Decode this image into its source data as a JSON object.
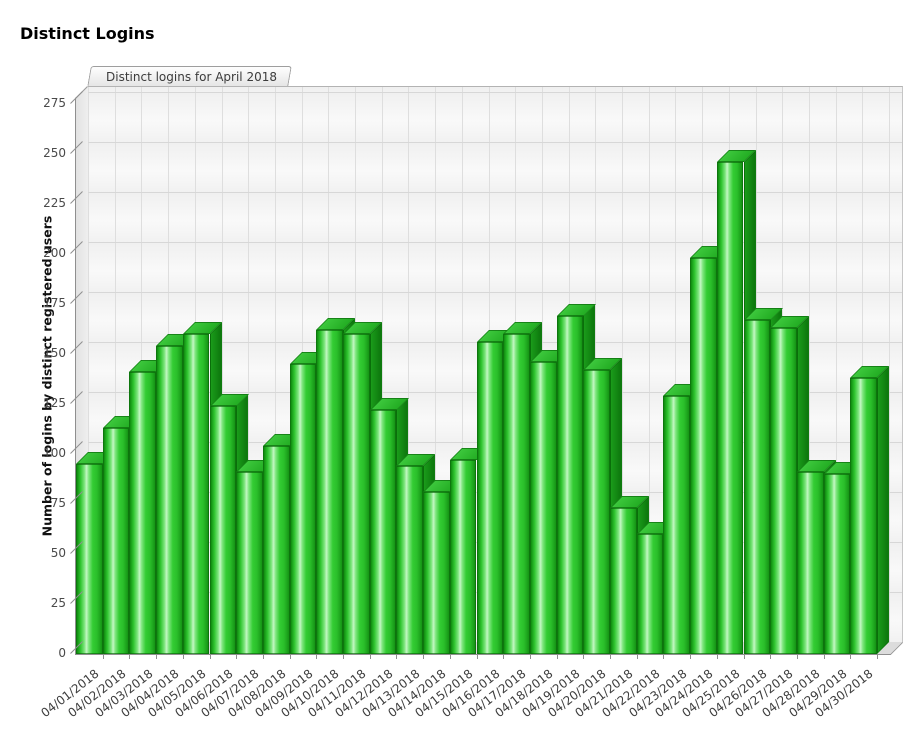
{
  "page_title": "Distinct Logins",
  "tab_label": "Distinct logins for April 2018",
  "colors": {
    "bar_green": "#33cc33",
    "bar_side_green": "#0d770d",
    "bar_top_green": "#2eb82e",
    "plot_background": "#f2f2f2",
    "gridline": "#d7d7d7",
    "axis": "#8f8f8f",
    "text_dark": "#3d3d3d"
  },
  "chart_data": {
    "type": "bar",
    "title": "Distinct logins for April 2018",
    "xlabel": "",
    "ylabel": "Number of logins by distinct registered users",
    "ylim": [
      0,
      277
    ],
    "yticks": [
      0,
      25,
      50,
      75,
      100,
      125,
      150,
      175,
      200,
      225,
      250,
      275
    ],
    "grid": "on",
    "legend": "none",
    "categories": [
      "04/01/2018",
      "04/02/2018",
      "04/03/2018",
      "04/04/2018",
      "04/05/2018",
      "04/06/2018",
      "04/07/2018",
      "04/08/2018",
      "04/09/2018",
      "04/10/2018",
      "04/11/2018",
      "04/12/2018",
      "04/13/2018",
      "04/14/2018",
      "04/15/2018",
      "04/16/2018",
      "04/17/2018",
      "04/18/2018",
      "04/19/2018",
      "04/20/2018",
      "04/21/2018",
      "04/22/2018",
      "04/23/2018",
      "04/24/2018",
      "04/25/2018",
      "04/26/2018",
      "04/27/2018",
      "04/28/2018",
      "04/29/2018",
      "04/30/2018"
    ],
    "values": [
      95,
      113,
      141,
      154,
      160,
      124,
      91,
      104,
      145,
      162,
      160,
      122,
      94,
      81,
      97,
      156,
      160,
      146,
      169,
      142,
      73,
      60,
      129,
      198,
      246,
      167,
      163,
      91,
      90,
      138
    ]
  }
}
